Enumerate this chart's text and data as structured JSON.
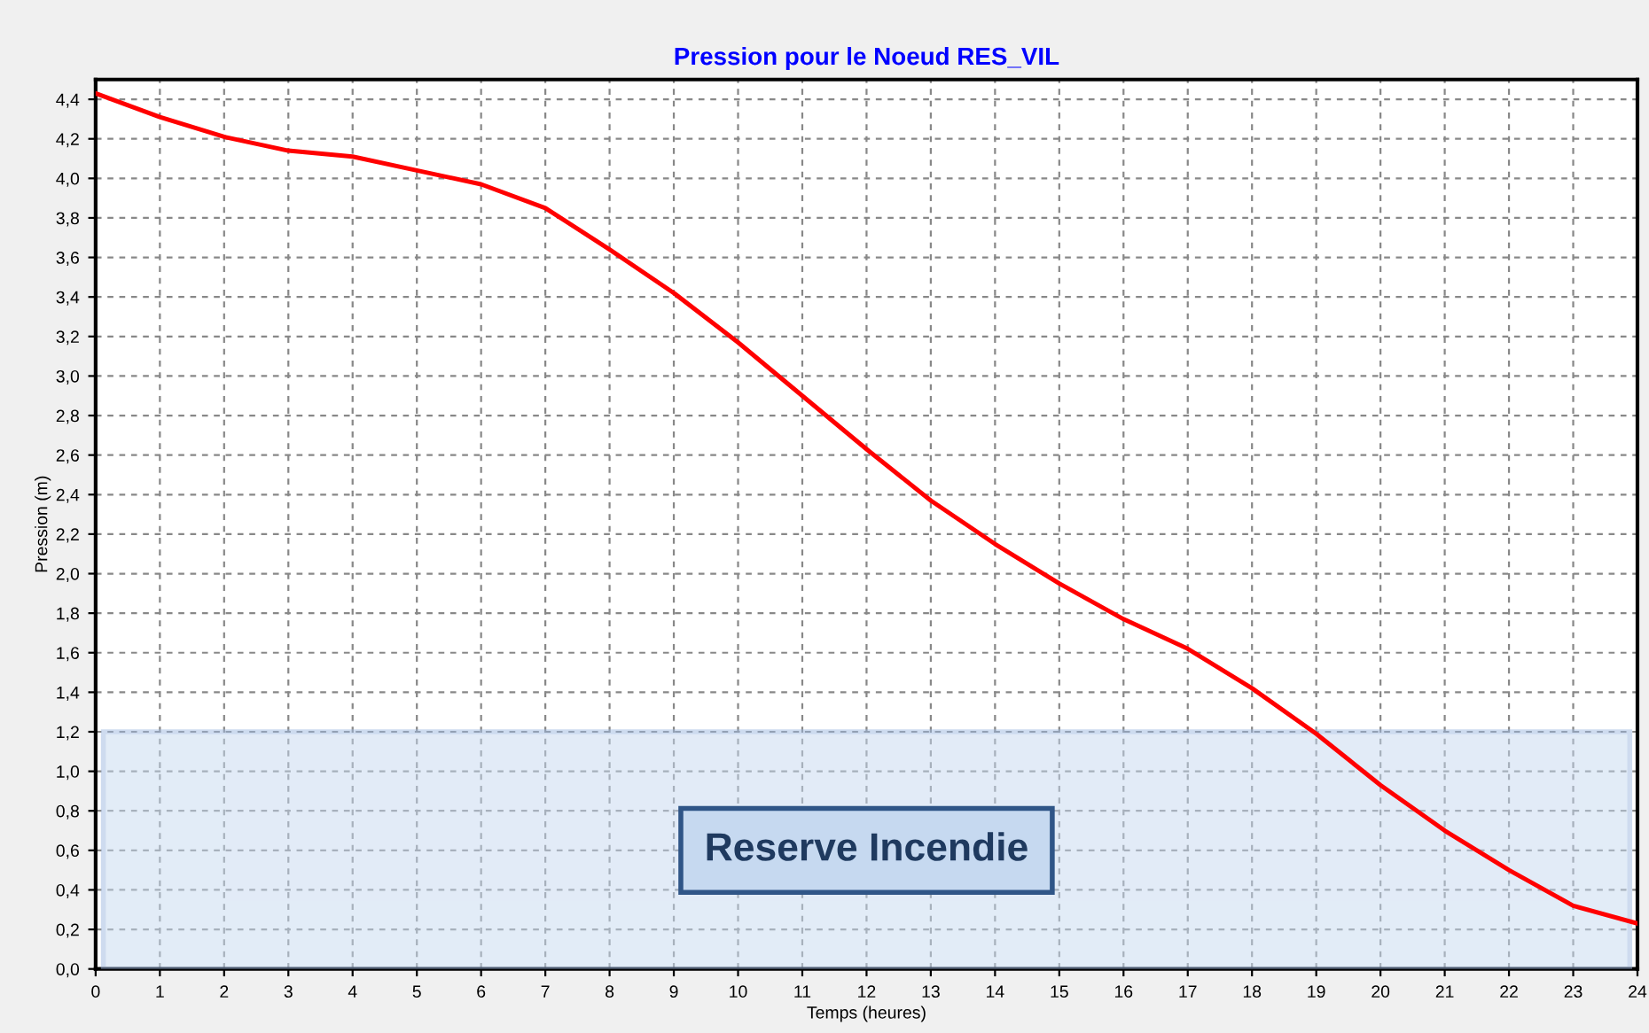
{
  "chart_data": {
    "type": "line",
    "title": "Pression pour le Noeud RES_VIL",
    "xlabel": "Temps (heures)",
    "ylabel": "Pression (m)",
    "x": [
      0,
      1,
      2,
      3,
      4,
      5,
      6,
      7,
      8,
      9,
      10,
      11,
      12,
      13,
      14,
      15,
      16,
      17,
      18,
      19,
      20,
      21,
      22,
      23,
      24
    ],
    "series": [
      {
        "color": "#ff0000",
        "values": [
          4.43,
          4.31,
          4.21,
          4.14,
          4.11,
          4.04,
          3.97,
          3.85,
          3.64,
          3.42,
          3.17,
          2.9,
          2.63,
          2.37,
          2.15,
          1.95,
          1.77,
          1.62,
          1.42,
          1.19,
          0.93,
          0.7,
          0.5,
          0.32,
          0.23
        ]
      }
    ],
    "xlim": [
      0,
      24
    ],
    "xticks": [
      0,
      1,
      2,
      3,
      4,
      5,
      6,
      7,
      8,
      9,
      10,
      11,
      12,
      13,
      14,
      15,
      16,
      17,
      18,
      19,
      20,
      21,
      22,
      23,
      24
    ],
    "ylim": [
      0,
      4.5
    ],
    "yticks": [
      {
        "value": 0,
        "label": "0,0"
      },
      {
        "value": 0.2,
        "label": "0,2"
      },
      {
        "value": 0.4,
        "label": "0,4"
      },
      {
        "value": 0.6,
        "label": "0,6"
      },
      {
        "value": 0.8,
        "label": "0,8"
      },
      {
        "value": 1.0,
        "label": "1,0"
      },
      {
        "value": 1.2,
        "label": "1,2"
      },
      {
        "value": 1.4,
        "label": "1,4"
      },
      {
        "value": 1.6,
        "label": "1,6"
      },
      {
        "value": 1.8,
        "label": "1,8"
      },
      {
        "value": 2.0,
        "label": "2,0"
      },
      {
        "value": 2.2,
        "label": "2,2"
      },
      {
        "value": 2.4,
        "label": "2,4"
      },
      {
        "value": 2.6,
        "label": "2,6"
      },
      {
        "value": 2.8,
        "label": "2,8"
      },
      {
        "value": 3.0,
        "label": "3,0"
      },
      {
        "value": 3.2,
        "label": "3,2"
      },
      {
        "value": 3.4,
        "label": "3,4"
      },
      {
        "value": 3.6,
        "label": "3,6"
      },
      {
        "value": 3.8,
        "label": "3,8"
      },
      {
        "value": 4.0,
        "label": "4,0"
      },
      {
        "value": 4.2,
        "label": "4,2"
      },
      {
        "value": 4.4,
        "label": "4,4"
      }
    ],
    "bands": [
      {
        "axis": "y",
        "from": 0,
        "to": 1.2,
        "label": "Reserve Incendie",
        "color": "#c6d9f0"
      }
    ],
    "grid": true,
    "line_style": "solid",
    "marker": "none",
    "legend": false
  }
}
